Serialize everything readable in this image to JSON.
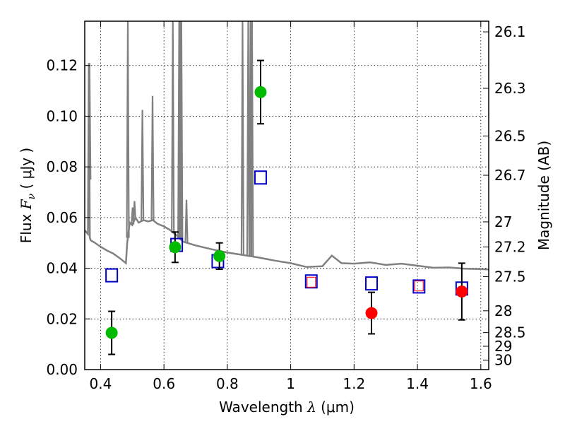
{
  "chart_data": {
    "type": "scatter",
    "xlabel": {
      "prefix": "Wavelength  ",
      "sym": "λ",
      "unit": " (μm)"
    },
    "ylabel": {
      "prefix": "Flux  ",
      "sym": "F",
      "sub": "ν",
      "unit": "  ( μJy )"
    },
    "y2label": "Magnitude (AB)",
    "xlim": [
      0.35,
      1.625
    ],
    "ylim": [
      0.0,
      0.1375
    ],
    "grid": true,
    "x_ticks": [
      0.4,
      0.6,
      0.8,
      1.0,
      1.2,
      1.4,
      1.6
    ],
    "x_tick_labels": [
      "0.4",
      "0.6",
      "0.8",
      "1",
      "1.2",
      "1.4",
      "1.6"
    ],
    "y_ticks": [
      0.0,
      0.02,
      0.04,
      0.06,
      0.08,
      0.1,
      0.12
    ],
    "y_tick_labels": [
      "0.00",
      "0.02",
      "0.04",
      "0.06",
      "0.08",
      "0.10",
      "0.12"
    ],
    "y2_ticks": [
      {
        "label": "26.1",
        "flux": 0.1333
      },
      {
        "label": "26.3",
        "flux": 0.111
      },
      {
        "label": "26.5",
        "flux": 0.0922
      },
      {
        "label": "26.7",
        "flux": 0.0767
      },
      {
        "label": "27",
        "flux": 0.0583
      },
      {
        "label": "27.2",
        "flux": 0.0484
      },
      {
        "label": "27.5",
        "flux": 0.0367
      },
      {
        "label": "28",
        "flux": 0.0232
      },
      {
        "label": "28.5",
        "flux": 0.0146
      },
      {
        "label": "29",
        "flux": 0.0092
      },
      {
        "label": "30",
        "flux": 0.0037
      }
    ],
    "observed_optical": {
      "color": "#00bb00",
      "points": [
        {
          "x": 0.435,
          "y": 0.0145,
          "yerr": 0.0085
        },
        {
          "x": 0.635,
          "y": 0.0483,
          "yerr": 0.006
        },
        {
          "x": 0.775,
          "y": 0.0448,
          "yerr": 0.0052
        },
        {
          "x": 0.905,
          "y": 0.1095,
          "yerr": 0.0125
        }
      ]
    },
    "observed_ir": {
      "color": "#ff0000",
      "points": [
        {
          "x": 1.255,
          "y": 0.0223,
          "yerr": 0.0082
        },
        {
          "x": 1.54,
          "y": 0.0308,
          "yerr": 0.0112
        }
      ]
    },
    "model_blue": {
      "color": "#0000cc",
      "points": [
        {
          "x": 0.435,
          "y": 0.0372
        },
        {
          "x": 0.64,
          "y": 0.0492
        },
        {
          "x": 0.77,
          "y": 0.0428
        },
        {
          "x": 0.905,
          "y": 0.0758
        },
        {
          "x": 1.065,
          "y": 0.0348
        },
        {
          "x": 1.255,
          "y": 0.034
        },
        {
          "x": 1.405,
          "y": 0.0328
        },
        {
          "x": 1.54,
          "y": 0.032
        }
      ]
    },
    "model_red": {
      "color": "#ff0000",
      "points": [
        {
          "x": 1.065,
          "y": 0.0345
        },
        {
          "x": 1.405,
          "y": 0.033
        }
      ]
    },
    "sed_model": {
      "color": "#808080",
      "x": [
        0.35,
        0.36,
        0.363,
        0.366,
        0.369,
        0.38,
        0.4,
        0.42,
        0.44,
        0.46,
        0.475,
        0.48,
        0.484,
        0.488,
        0.492,
        0.5,
        0.51,
        0.52,
        0.535,
        0.55,
        0.565,
        0.58,
        0.6,
        0.62,
        0.64,
        0.66,
        0.7,
        0.75,
        0.8,
        0.85,
        0.9,
        0.95,
        1.0,
        1.05,
        1.1,
        1.13,
        1.16,
        1.2,
        1.25,
        1.3,
        1.35,
        1.4,
        1.45,
        1.5,
        1.55,
        1.6,
        1.625
      ],
      "y": [
        0.055,
        0.0535,
        0.121,
        0.052,
        0.051,
        0.0502,
        0.0485,
        0.047,
        0.0458,
        0.044,
        0.0425,
        0.042,
        0.05,
        0.054,
        0.058,
        0.057,
        0.06,
        0.058,
        0.059,
        0.0585,
        0.059,
        0.0575,
        0.0565,
        0.055,
        0.053,
        0.0505,
        0.049,
        0.0475,
        0.0462,
        0.0452,
        0.0442,
        0.043,
        0.042,
        0.0405,
        0.0408,
        0.045,
        0.042,
        0.0418,
        0.0423,
        0.0413,
        0.0418,
        0.041,
        0.0402,
        0.0403,
        0.0398,
        0.0397,
        0.0395
      ],
      "emission_lines": [
        {
          "x": 0.365,
          "peak": 0.121
        },
        {
          "x": 0.486,
          "peak": 0.1375
        },
        {
          "x": 0.501,
          "peak": 0.064
        },
        {
          "x": 0.507,
          "peak": 0.0665
        },
        {
          "x": 0.532,
          "peak": 0.1025
        },
        {
          "x": 0.564,
          "peak": 0.108
        },
        {
          "x": 0.628,
          "peak": 0.1375
        },
        {
          "x": 0.648,
          "peak": 0.1375
        },
        {
          "x": 0.652,
          "peak": 0.1375
        },
        {
          "x": 0.655,
          "peak": 0.1375
        },
        {
          "x": 0.671,
          "peak": 0.067
        },
        {
          "x": 0.848,
          "peak": 0.1375
        },
        {
          "x": 0.866,
          "peak": 0.1375
        },
        {
          "x": 0.873,
          "peak": 0.1375
        },
        {
          "x": 0.878,
          "peak": 0.1375
        }
      ]
    }
  }
}
